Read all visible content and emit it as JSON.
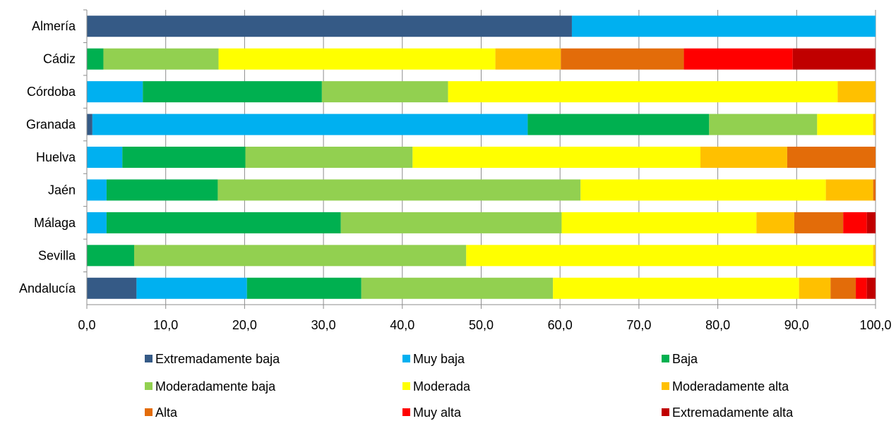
{
  "chart_data": {
    "type": "bar",
    "orientation": "horizontal",
    "stacked": true,
    "categories": [
      "Almería",
      "Cádiz",
      "Córdoba",
      "Granada",
      "Huelva",
      "Jaén",
      "Málaga",
      "Sevilla",
      "Andalucía"
    ],
    "xlim": [
      0,
      100
    ],
    "xticks": [
      "0,0",
      "10,0",
      "20,0",
      "30,0",
      "40,0",
      "50,0",
      "60,0",
      "70,0",
      "80,0",
      "90,0",
      "100,0"
    ],
    "grid": "vertical",
    "legend_position": "bottom",
    "series": [
      {
        "name": "Extremadamente baja",
        "color": "#355a86",
        "values": [
          61.5,
          0,
          0,
          0.7,
          0,
          0,
          0,
          0,
          6.3
        ]
      },
      {
        "name": "Muy baja",
        "color": "#00b0f0",
        "values": [
          38.5,
          0,
          7.1,
          55.2,
          4.5,
          2.5,
          2.5,
          0,
          14.0
        ]
      },
      {
        "name": "Baja",
        "color": "#00b050",
        "values": [
          0,
          2.1,
          22.7,
          23.0,
          15.6,
          14.1,
          29.7,
          6.0,
          14.5
        ]
      },
      {
        "name": "Moderadamente baja",
        "color": "#92d050",
        "values": [
          0,
          14.6,
          16.0,
          13.7,
          21.2,
          46.0,
          28.0,
          42.1,
          24.3
        ]
      },
      {
        "name": "Moderada",
        "color": "#ffff00",
        "values": [
          0,
          35.1,
          49.4,
          7.1,
          36.5,
          31.1,
          24.7,
          51.6,
          31.2
        ]
      },
      {
        "name": "Moderadamente alta",
        "color": "#ffc000",
        "values": [
          0,
          8.3,
          4.8,
          0.3,
          11.0,
          6.0,
          4.8,
          0.3,
          4.0
        ]
      },
      {
        "name": "Alta",
        "color": "#e36c09",
        "values": [
          0,
          15.6,
          0,
          0,
          11.4,
          0.3,
          6.2,
          0,
          3.2
        ]
      },
      {
        "name": "Muy alta",
        "color": "#ff0000",
        "values": [
          0,
          13.8,
          0,
          0,
          0,
          0,
          3.0,
          0,
          1.4
        ]
      },
      {
        "name": "Extremadamente alta",
        "color": "#c00000",
        "values": [
          0,
          10.5,
          0,
          0,
          0,
          0,
          1.2,
          0,
          1.1
        ]
      }
    ]
  }
}
